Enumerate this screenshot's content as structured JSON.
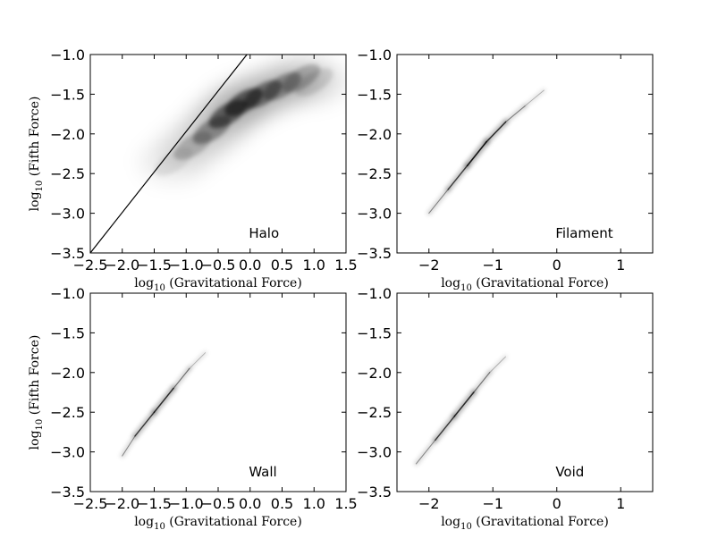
{
  "chart_data": [
    {
      "type": "heatmap",
      "panel_label": "Halo",
      "xlabel": "log10 (Gravitational Force)",
      "ylabel": "log10 (Fifth Force)",
      "xlim": [
        -2.5,
        1.5
      ],
      "ylim": [
        -3.5,
        -1.0
      ],
      "xticks": [
        "−2.5",
        "−2.0",
        "−1.5",
        "−1.0",
        "−0.5",
        "0.0",
        "0.5",
        "1.0",
        "1.5"
      ],
      "yticks": [
        "−1.0",
        "−1.5",
        "−2.0",
        "−2.5",
        "−3.0",
        "−3.5"
      ],
      "reference_line": {
        "x": [
          -2.5,
          -0.05
        ],
        "y": [
          -3.5,
          -1.0
        ]
      },
      "density": [
        {
          "x": -1.2,
          "y": -2.35,
          "weight": 0.15
        },
        {
          "x": -0.9,
          "y": -2.15,
          "weight": 0.35
        },
        {
          "x": -0.6,
          "y": -1.95,
          "weight": 0.6
        },
        {
          "x": -0.35,
          "y": -1.75,
          "weight": 0.9
        },
        {
          "x": -0.1,
          "y": -1.6,
          "weight": 0.95
        },
        {
          "x": 0.2,
          "y": -1.5,
          "weight": 0.75
        },
        {
          "x": 0.5,
          "y": -1.4,
          "weight": 0.55
        },
        {
          "x": 0.8,
          "y": -1.3,
          "weight": 0.4
        },
        {
          "x": 1.0,
          "y": -1.35,
          "weight": 0.2
        }
      ]
    },
    {
      "type": "heatmap",
      "panel_label": "Filament",
      "xlabel": "log10 (Gravitational Force)",
      "ylabel": "",
      "xlim": [
        -2.5,
        1.5
      ],
      "ylim": [
        -3.5,
        -1.0
      ],
      "xticks": [
        "−2",
        "−1",
        "0",
        "1"
      ],
      "yticks": [
        "−1.0",
        "−1.5",
        "−2.0",
        "−2.5",
        "−3.0",
        "−3.5"
      ],
      "density": [
        {
          "x": -2.0,
          "y": -3.0,
          "weight": 0.2
        },
        {
          "x": -1.7,
          "y": -2.7,
          "weight": 0.5
        },
        {
          "x": -1.4,
          "y": -2.4,
          "weight": 0.8
        },
        {
          "x": -1.1,
          "y": -2.1,
          "weight": 0.95
        },
        {
          "x": -0.8,
          "y": -1.85,
          "weight": 0.5
        },
        {
          "x": -0.5,
          "y": -1.65,
          "weight": 0.25
        },
        {
          "x": -0.2,
          "y": -1.45,
          "weight": 0.1
        }
      ]
    },
    {
      "type": "heatmap",
      "panel_label": "Wall",
      "xlabel": "log10 (Gravitational Force)",
      "ylabel": "log10 (Fifth Force)",
      "xlim": [
        -2.5,
        1.5
      ],
      "ylim": [
        -3.5,
        -1.0
      ],
      "xticks": [
        "−2.5",
        "−2.0",
        "−1.5",
        "−1.0",
        "−0.5",
        "0.0",
        "0.5",
        "1.0",
        "1.5"
      ],
      "yticks": [
        "−1.0",
        "−1.5",
        "−2.0",
        "−2.5",
        "−3.0",
        "−3.5"
      ],
      "density": [
        {
          "x": -2.0,
          "y": -3.05,
          "weight": 0.2
        },
        {
          "x": -1.8,
          "y": -2.8,
          "weight": 0.45
        },
        {
          "x": -1.5,
          "y": -2.5,
          "weight": 0.9
        },
        {
          "x": -1.2,
          "y": -2.2,
          "weight": 0.6
        },
        {
          "x": -0.95,
          "y": -1.95,
          "weight": 0.25
        },
        {
          "x": -0.7,
          "y": -1.75,
          "weight": 0.1
        }
      ]
    },
    {
      "type": "heatmap",
      "panel_label": "Void",
      "xlabel": "log10 (Gravitational Force)",
      "ylabel": "",
      "xlim": [
        -2.5,
        1.5
      ],
      "ylim": [
        -3.5,
        -1.0
      ],
      "xticks": [
        "−2",
        "−1",
        "0",
        "1"
      ],
      "yticks": [
        "−1.0",
        "−1.5",
        "−2.0",
        "−2.5",
        "−3.0",
        "−3.5"
      ],
      "density": [
        {
          "x": -2.2,
          "y": -3.15,
          "weight": 0.2
        },
        {
          "x": -1.9,
          "y": -2.85,
          "weight": 0.45
        },
        {
          "x": -1.6,
          "y": -2.55,
          "weight": 0.9
        },
        {
          "x": -1.3,
          "y": -2.25,
          "weight": 0.6
        },
        {
          "x": -1.05,
          "y": -2.0,
          "weight": 0.25
        },
        {
          "x": -0.8,
          "y": -1.8,
          "weight": 0.1
        }
      ]
    }
  ]
}
